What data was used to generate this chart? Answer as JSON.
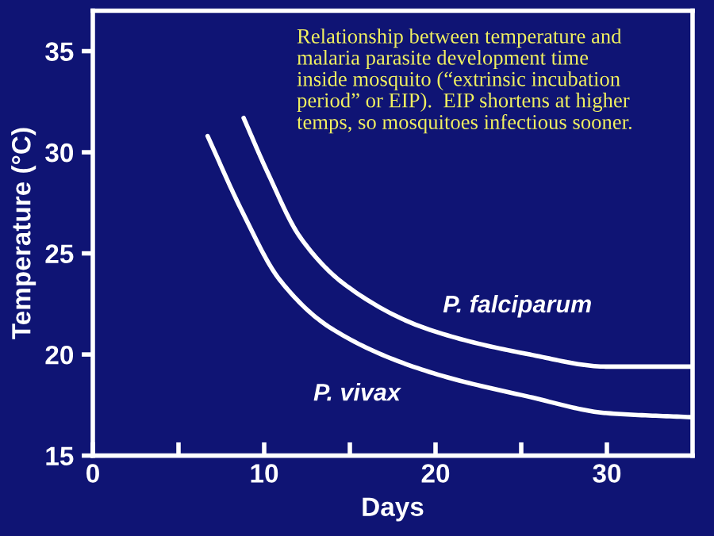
{
  "chart_data": {
    "type": "line",
    "xlabel": "Days",
    "ylabel": "Temperature (°C)",
    "annotations": [
      "Relationship between temperature and\nmalaria parasite development time\ninside mosquito (“extrinsic incubation\nperiod” or EIP).  EIP shortens at higher\ntemps, so mosquitoes infectious sooner."
    ],
    "series": [
      {
        "name": "P. falciparum",
        "color": "#ffffff",
        "x": [
          8.8,
          10.2,
          12.1,
          14.8,
          19.4,
          25.5,
          30.0,
          34.9
        ],
        "values": [
          31.7,
          29.0,
          25.8,
          23.4,
          21.3,
          20.0,
          19.4,
          19.4
        ]
      },
      {
        "name": "P. vivax",
        "color": "#ffffff",
        "x": [
          6.7,
          8.7,
          10.9,
          13.9,
          19.4,
          25.5,
          30.0,
          34.9
        ],
        "values": [
          30.8,
          27.1,
          23.7,
          21.3,
          19.2,
          17.9,
          17.1,
          16.9
        ]
      }
    ],
    "xlim": [
      0,
      35
    ],
    "ylim": [
      15,
      37
    ],
    "xticks": [
      0,
      {
        "value": 5,
        "label": null
      },
      10,
      {
        "value": 15,
        "label": null
      },
      20,
      {
        "value": 25,
        "label": null
      },
      30
    ],
    "yticks": [
      15,
      20,
      25,
      30,
      35
    ],
    "grid": false,
    "legend": false,
    "marker": "none",
    "line_style": "solid"
  }
}
